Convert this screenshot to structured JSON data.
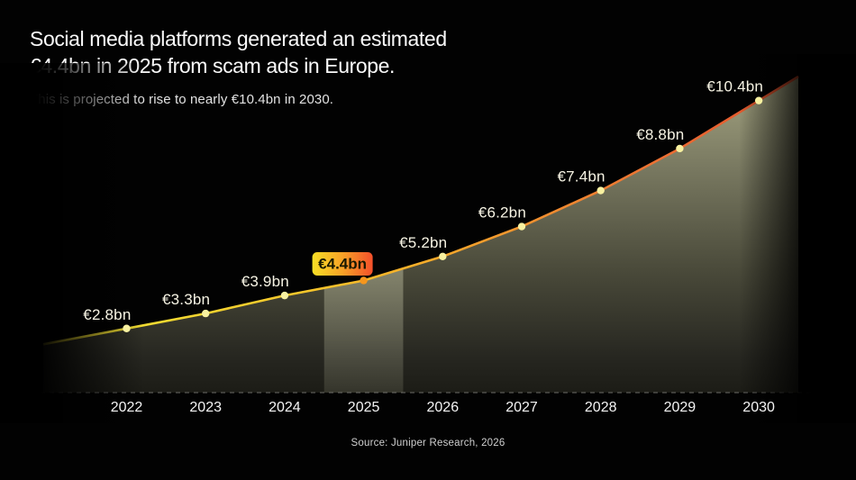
{
  "header": {
    "title_line1": "Social media platforms generated an estimated",
    "title_line2": "€4.4bn in 2025 from scam ads in Europe.",
    "subtitle": "This is projected to rise to nearly €10.4bn in 2030."
  },
  "footer": {
    "source": "Source: Juniper Research, 2026"
  },
  "chart_data": {
    "type": "area",
    "title": "Social media platforms generated an estimated €4.4bn in 2025 from scam ads in Europe.",
    "subtitle": "This is projected to rise to nearly €10.4bn in 2030.",
    "x": [
      2022,
      2023,
      2024,
      2025,
      2026,
      2027,
      2028,
      2029,
      2030
    ],
    "values": [
      2.8,
      3.3,
      3.9,
      4.4,
      5.2,
      6.2,
      7.4,
      8.8,
      10.4
    ],
    "point_labels": [
      "€2.8bn",
      "€3.3bn",
      "€3.9bn",
      "€4.4bn",
      "€5.2bn",
      "€6.2bn",
      "€7.4bn",
      "€8.8bn",
      "€10.4bn"
    ],
    "highlighted_year": 2025,
    "highlight_label": "€4.4bn",
    "unit": "€bn",
    "xlabel": "",
    "ylabel": "",
    "ylim": [
      0,
      11
    ],
    "grid": false,
    "legend": false,
    "baseline_style": "dashed",
    "source": "Source: Juniper Research, 2026"
  },
  "colors": {
    "background": "#020202",
    "line_gradient": [
      "#d8c930",
      "#f0dc32",
      "#f6c62b",
      "#f5ad2a",
      "#f1902f",
      "#ec6f33",
      "#e14e2b"
    ],
    "area_top": "#a3a381",
    "area_bottom": "#1b1b15",
    "band_overlay": "#e4e4c0",
    "dot": "#f8f1a0",
    "highlight_dot": "#f5961d",
    "badge_gradient": [
      "#f8df25",
      "#f8a227",
      "#f4502b"
    ],
    "badge_text": "#181800",
    "point_label_text": "#f7f4e4",
    "axis_label_text": "#f4f4f4",
    "axis_line": "#8a8a85"
  }
}
